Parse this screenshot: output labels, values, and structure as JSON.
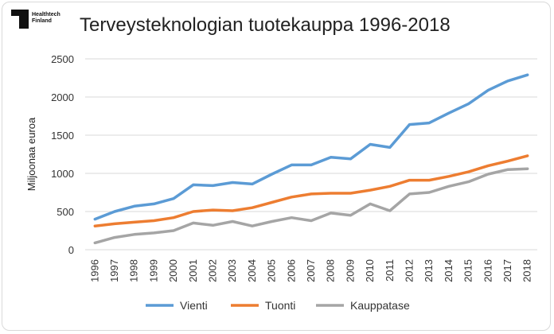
{
  "logo": {
    "line1": "Healthtech",
    "line2": "Finland"
  },
  "chart_data": {
    "type": "line",
    "title": "Terveysteknologian tuotekauppa 1996-2018",
    "xlabel": "",
    "ylabel": "Miljoonaa euroa",
    "ylim": [
      0,
      2500
    ],
    "yticks": [
      0,
      500,
      1000,
      1500,
      2000,
      2500
    ],
    "grid": true,
    "legend_position": "bottom",
    "x": [
      "1996",
      "1997",
      "1998",
      "1999",
      "2000",
      "2001",
      "2002",
      "2003",
      "2004",
      "2005",
      "2006",
      "2007",
      "2008",
      "2009",
      "2010",
      "2011",
      "2012",
      "2013",
      "2014",
      "2015",
      "2016",
      "2017",
      "2018"
    ],
    "series": [
      {
        "name": "Vienti",
        "color": "#5b9bd5",
        "values": [
          400,
          500,
          570,
          600,
          670,
          850,
          840,
          880,
          860,
          990,
          1110,
          1110,
          1210,
          1190,
          1380,
          1340,
          1640,
          1660,
          1790,
          1910,
          2090,
          2210,
          2290
        ]
      },
      {
        "name": "Tuonti",
        "color": "#ed7d31",
        "values": [
          310,
          340,
          360,
          380,
          420,
          500,
          520,
          510,
          550,
          620,
          690,
          730,
          740,
          740,
          780,
          830,
          910,
          910,
          960,
          1020,
          1100,
          1160,
          1230
        ]
      },
      {
        "name": "Kauppatase",
        "color": "#a5a5a5",
        "values": [
          90,
          160,
          200,
          220,
          250,
          350,
          320,
          370,
          310,
          370,
          420,
          380,
          480,
          450,
          600,
          510,
          730,
          750,
          830,
          890,
          990,
          1050,
          1060
        ]
      }
    ]
  }
}
